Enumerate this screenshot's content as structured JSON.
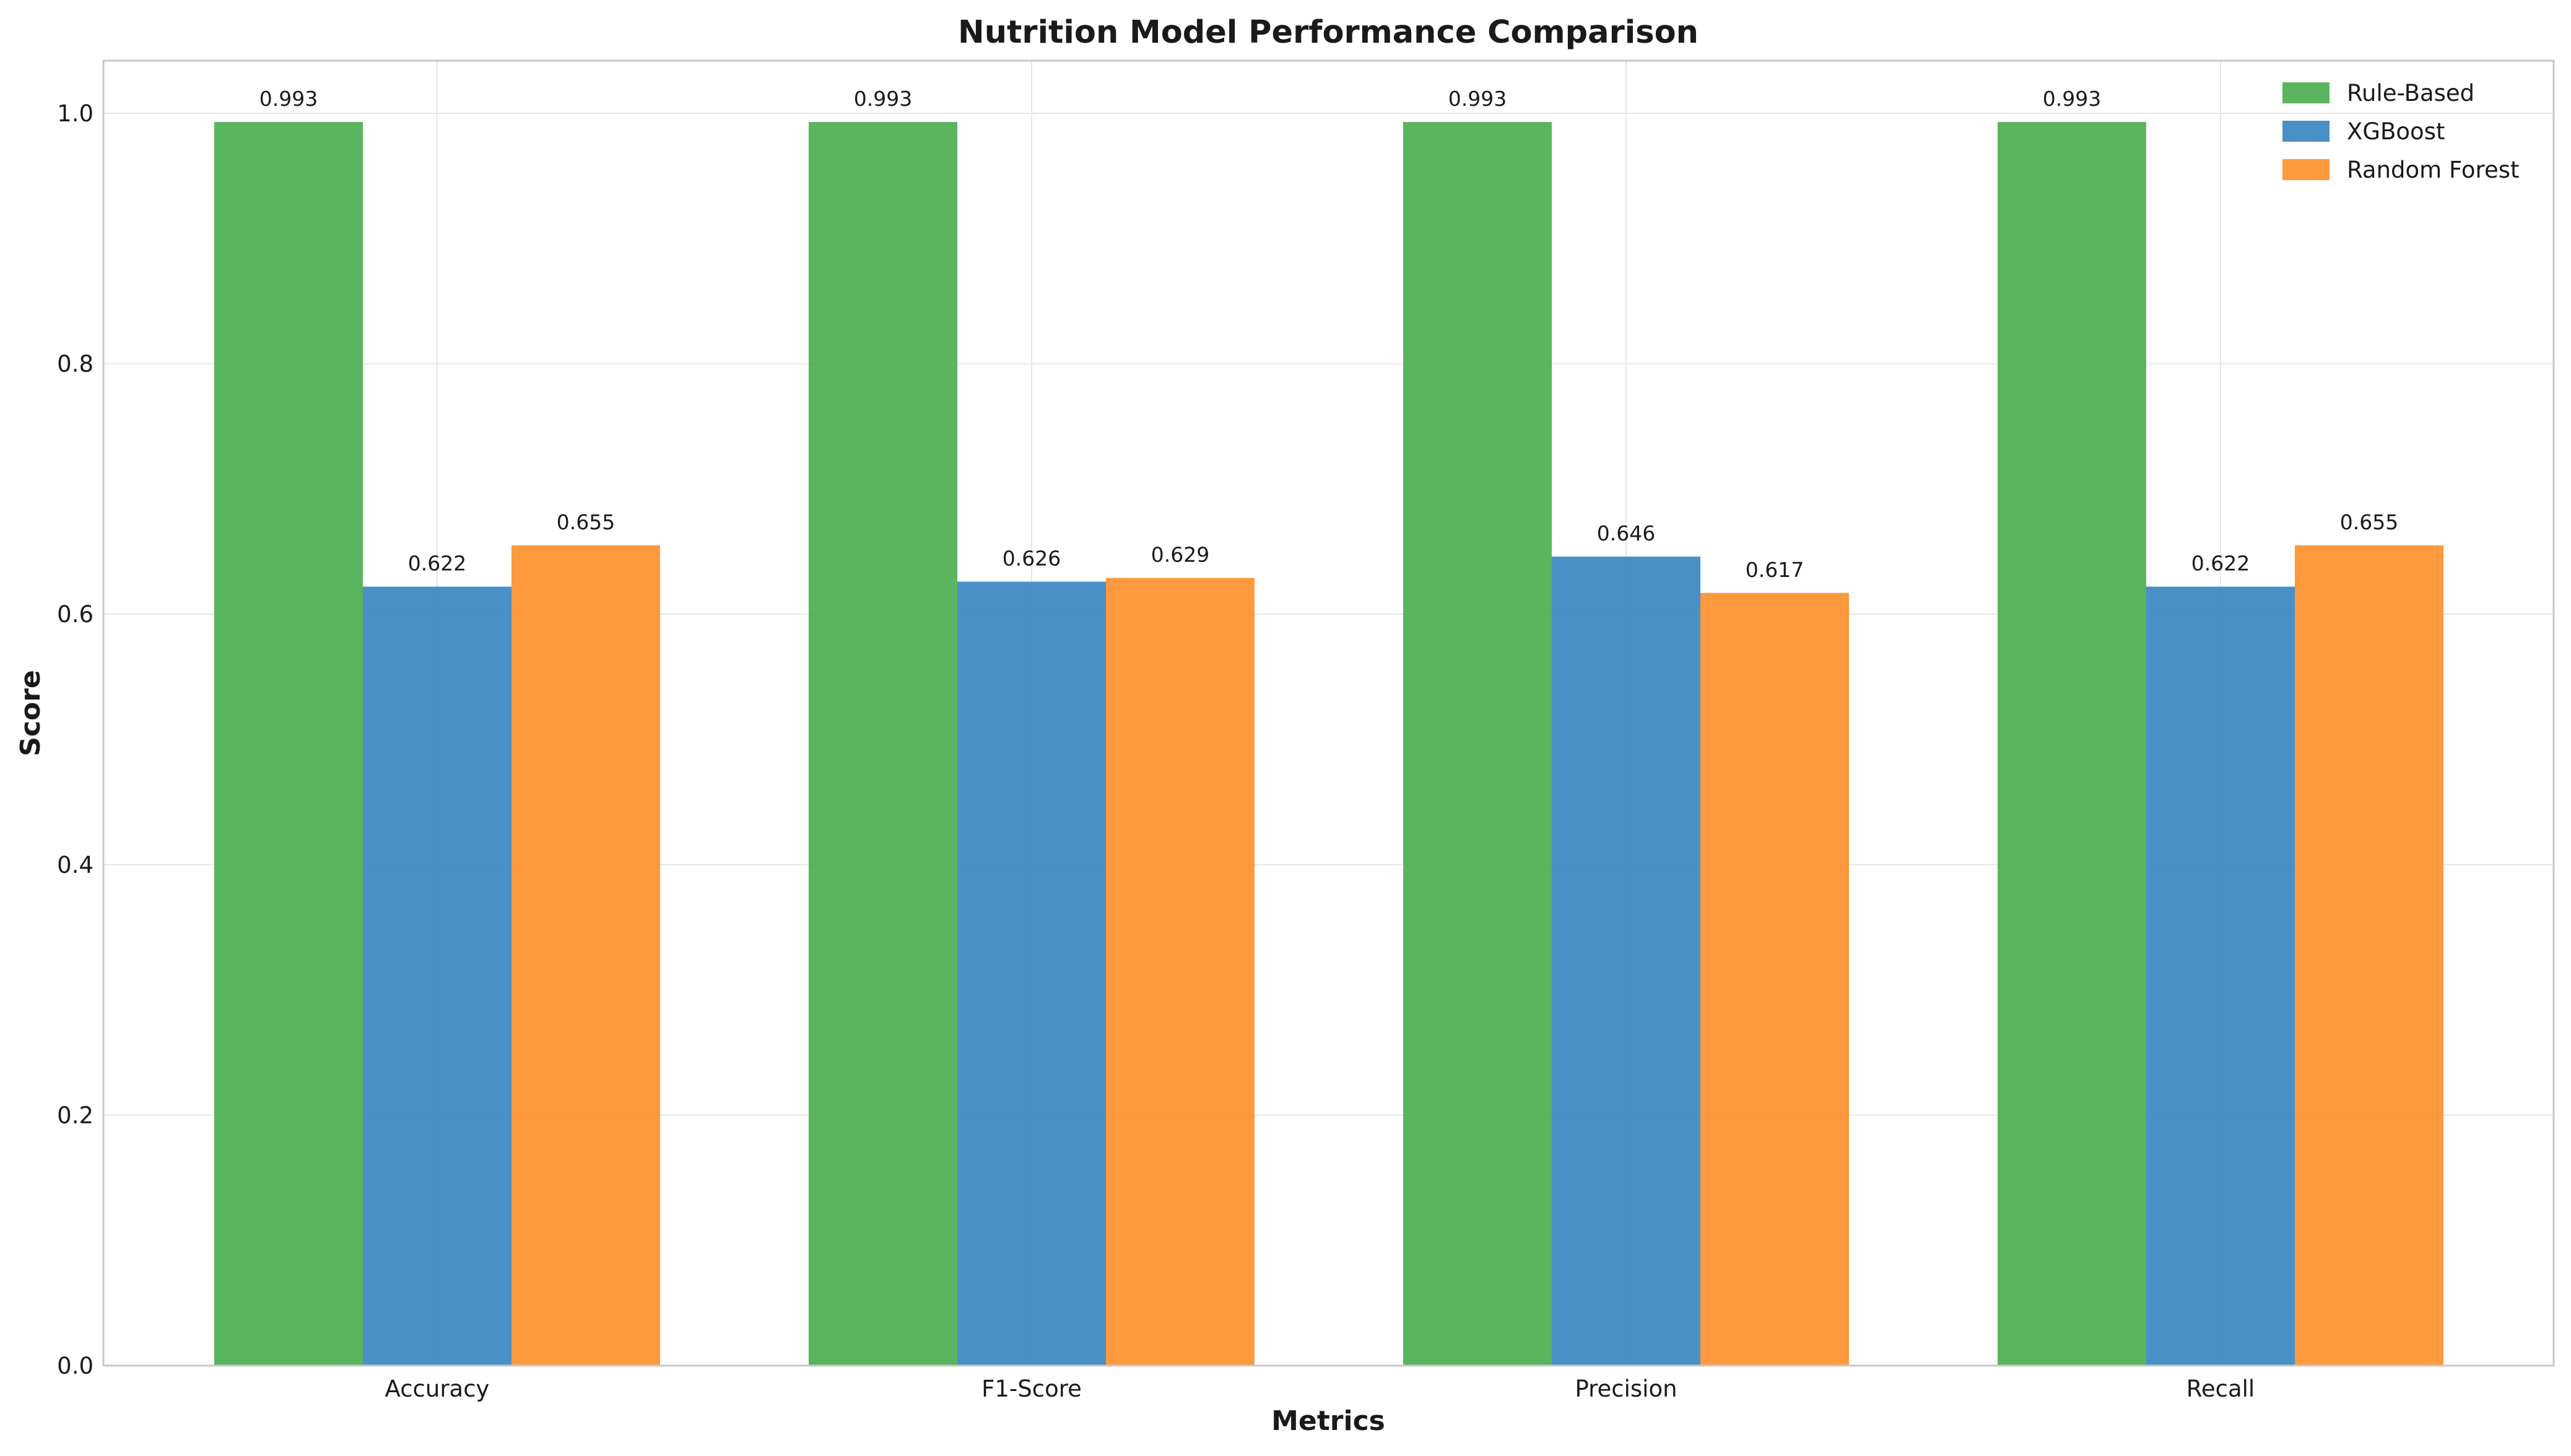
{
  "chart_data": {
    "type": "bar",
    "title": "Nutrition Model Performance Comparison",
    "xlabel": "Metrics",
    "ylabel": "Score",
    "categories": [
      "Accuracy",
      "F1-Score",
      "Precision",
      "Recall"
    ],
    "series": [
      {
        "name": "Rule-Based",
        "color": "#4caf50",
        "values": [
          0.993,
          0.993,
          0.993,
          0.993
        ],
        "labels": [
          "0.993",
          "0.993",
          "0.993",
          "0.993"
        ]
      },
      {
        "name": "XGBoost",
        "color": "#3a87c2",
        "values": [
          0.622,
          0.626,
          0.646,
          0.622
        ],
        "labels": [
          "0.622",
          "0.626",
          "0.646",
          "0.622"
        ]
      },
      {
        "name": "Random Forest",
        "color": "#ff902e",
        "values": [
          0.655,
          0.629,
          0.617,
          0.655
        ],
        "labels": [
          "0.655",
          "0.629",
          "0.617",
          "0.655"
        ]
      }
    ],
    "ylim": [
      0,
      1.042
    ],
    "yticks": [
      0.0,
      0.2,
      0.4,
      0.6,
      0.8,
      1.0
    ],
    "ytick_labels": [
      "0.0",
      "0.2",
      "0.4",
      "0.6",
      "0.8",
      "1.0"
    ],
    "grid": true,
    "legend_position": "top-right"
  }
}
